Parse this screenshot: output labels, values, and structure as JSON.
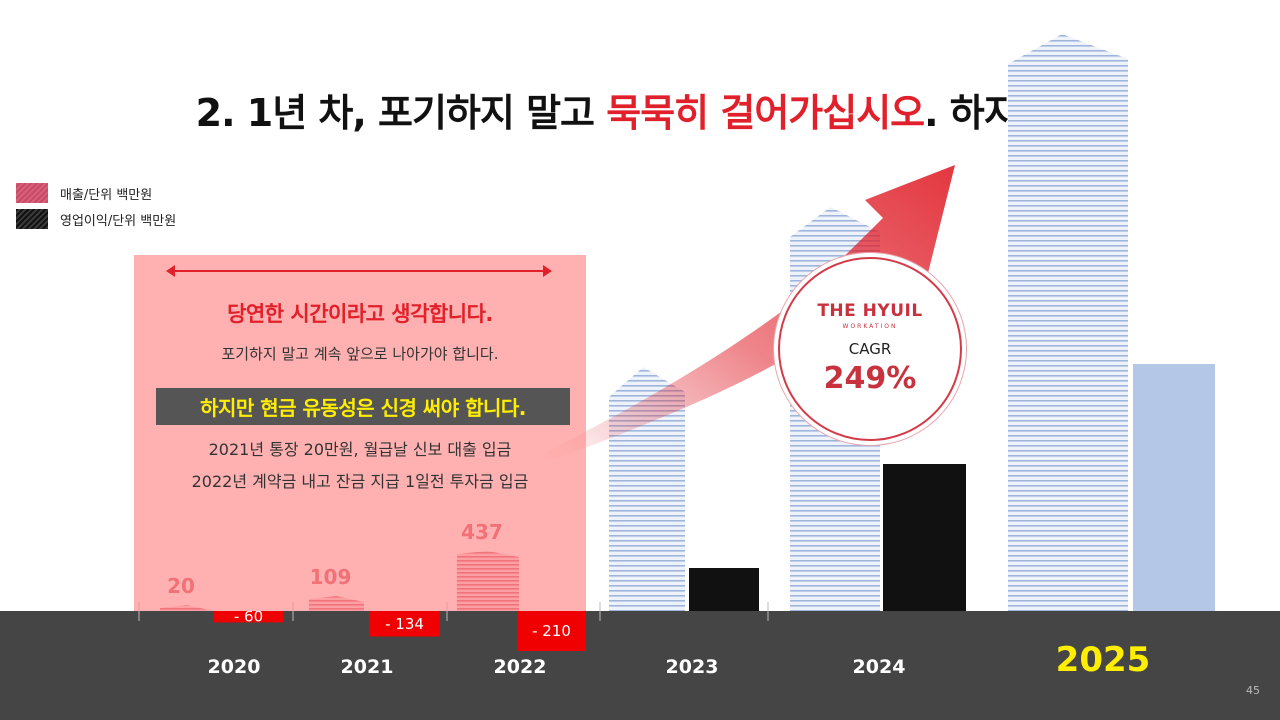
{
  "title": {
    "part1": "2. 1년 차, 포기하지 말고 ",
    "highlight": "묵묵히 걸어가십시오",
    "part2": ". 하지만!!"
  },
  "legend": [
    {
      "label": "매출/단위 백만원",
      "color": "#d9607a"
    },
    {
      "label": "영업이익/단위 백만원",
      "color": "#111111"
    }
  ],
  "callout": {
    "heading": "당연한 시간이라고 생각합니다.",
    "subtext": "포기하지 말고 계속 앞으로 나아가야 합니다.",
    "highlight": "하지만 현금 유동성은 신경 써야 합니다.",
    "lines": [
      "2021년 통장 20만원, 월급날 신보 대출 입금",
      "2022년 계약금 내고 잔금 지급 1일전 투자금 입금"
    ]
  },
  "badge": {
    "brand": "THE HYUIL",
    "brand_sub": "WORKATION",
    "label": "CAGR",
    "value": "249%"
  },
  "page_number": "45",
  "colors": {
    "accent_red": "#e0202a",
    "highlight_yellow": "#ffee00",
    "bottom_bar": "#454545",
    "revenue_pink": "#d9607a",
    "profit_black": "#111111"
  },
  "chart_data": {
    "type": "bar",
    "categories": [
      "2020",
      "2021",
      "2022",
      "2023",
      "2024",
      "2025"
    ],
    "highlight_category": "2025",
    "series": [
      {
        "name": "매출/단위 백만원",
        "values": [
          20,
          109,
          437,
          null,
          null,
          null
        ],
        "labels": [
          "20",
          "109",
          "437",
          "",
          "",
          ""
        ]
      },
      {
        "name": "영업이익/단위 백만원",
        "values": [
          -60,
          -134,
          -210,
          null,
          null,
          null
        ],
        "labels": [
          "- 60",
          "- 134",
          "- 210",
          "",
          "",
          ""
        ]
      }
    ],
    "annotation": "CAGR 249%",
    "grid": false
  }
}
